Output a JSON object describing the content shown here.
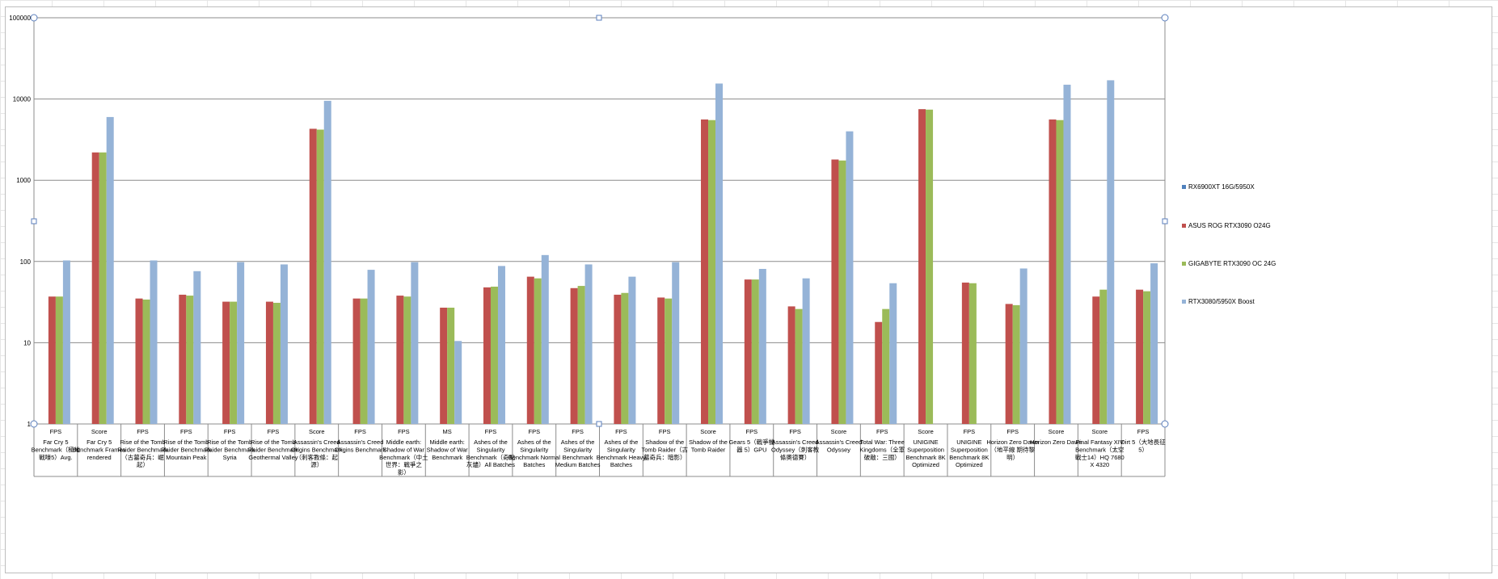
{
  "chart_data": {
    "type": "bar",
    "yscale": "log",
    "ylim": [
      1,
      100000
    ],
    "yticks": [
      1,
      10,
      100,
      1000,
      10000,
      100000
    ],
    "grid": true,
    "legend_position": "right",
    "categories": [
      {
        "metric": "FPS",
        "name": "Far Cry 5 Benchmark（極地戰嚎5）Avg."
      },
      {
        "metric": "Score",
        "name": "Far Cry 5 Benchmark Frames rendered"
      },
      {
        "metric": "FPS",
        "name": "Rise of the Tomb Raider Benchmark（古墓奇兵：崛起）"
      },
      {
        "metric": "FPS",
        "name": "Rise of the Tomb Raider Benchmark Mountain Peak"
      },
      {
        "metric": "FPS",
        "name": "Rise of the Tomb Raider Benchmark Syria"
      },
      {
        "metric": "FPS",
        "name": "Rise of the Tomb Raider Benchmark Geothermal Valley"
      },
      {
        "metric": "Score",
        "name": "Assassin's Creed Origins Benchmark（刺客教條：起源）"
      },
      {
        "metric": "FPS",
        "name": "Assassin's Creed Origins Benchmark"
      },
      {
        "metric": "FPS",
        "name": "Middle earth: Shadow of War Benchmark（中土世界：戰爭之影）"
      },
      {
        "metric": "MS",
        "name": "Middle earth: Shadow of War Benchmark"
      },
      {
        "metric": "FPS",
        "name": "Ashes of the Singularity Benchmark（奇點灰燼）All Batches"
      },
      {
        "metric": "FPS",
        "name": "Ashes of the Singularity Benchmark Normal Batches"
      },
      {
        "metric": "FPS",
        "name": "Ashes of the Singularity Benchmark Medium Batches"
      },
      {
        "metric": "FPS",
        "name": "Ashes of the Singularity Benchmark Heavy Batches"
      },
      {
        "metric": "FPS",
        "name": "Shadow of the Tomb Raider（古墓奇兵：暗影）"
      },
      {
        "metric": "Score",
        "name": "Shadow of the Tomb Raider"
      },
      {
        "metric": "FPS",
        "name": "Gears 5（戰爭機器 5）GPU"
      },
      {
        "metric": "FPS",
        "name": "Assassin's Creed Odyssey（刺客教條奧德賽）"
      },
      {
        "metric": "Score",
        "name": "Assassin's Creed Odyssey"
      },
      {
        "metric": "FPS",
        "name": "Total War: Three Kingdoms（全軍破敵：三國）"
      },
      {
        "metric": "Score",
        "name": "UNIGINE Superposition Benchmark 8K Optimized"
      },
      {
        "metric": "FPS",
        "name": "UNIGINE Superposition Benchmark 8K Optimized"
      },
      {
        "metric": "FPS",
        "name": "Horizon Zero Dawn（地平線 期待黎明）"
      },
      {
        "metric": "Score",
        "name": "Horizon Zero Dawn"
      },
      {
        "metric": "Score",
        "name": "Final Fantasy XIV Benchmark（太空戰士14）HQ 7680 X 4320"
      },
      {
        "metric": "FPS",
        "name": "Dirt 5（大地長征 5）"
      }
    ],
    "category_label_lines": [
      [
        "Far Cry 5",
        "Benchmark（極地",
        "戰嚎5）Avg."
      ],
      [
        "Far Cry 5",
        "Benchmark Frames",
        "rendered"
      ],
      [
        "Rise of the Tomb",
        "Raider Benchmark",
        "（古墓奇兵：崛",
        "起）"
      ],
      [
        "Rise of the Tomb",
        "Raider Benchmark",
        "Mountain Peak"
      ],
      [
        "Rise of the Tomb",
        "Raider Benchmark",
        "Syria"
      ],
      [
        "Rise of the Tomb",
        "Raider Benchmark",
        "Geothermal Valley"
      ],
      [
        "Assassin's Creed",
        "Origins Benchmark",
        "（刺客教條：起",
        "源）"
      ],
      [
        "Assassin's Creed",
        "Origins Benchmark"
      ],
      [
        "Middle earth:",
        "Shadow of War",
        "Benchmark（中土",
        "世界：戰爭之",
        "影）"
      ],
      [
        "Middle earth:",
        "Shadow of War",
        "Benchmark"
      ],
      [
        "Ashes of the",
        "Singularity",
        "Benchmark（奇點",
        "灰燼）All Batches"
      ],
      [
        "Ashes of the",
        "Singularity",
        "Benchmark Normal",
        "Batches"
      ],
      [
        "Ashes of the",
        "Singularity",
        "Benchmark",
        "Medium Batches"
      ],
      [
        "Ashes of the",
        "Singularity",
        "Benchmark Heavy",
        "Batches"
      ],
      [
        "Shadow of the",
        "Tomb Raider（古",
        "墓奇兵：暗影）"
      ],
      [
        "Shadow of the",
        "Tomb Raider"
      ],
      [
        "Gears 5（戰爭機",
        "器 5）GPU"
      ],
      [
        "Assassin's Creed",
        "Odyssey（刺客教",
        "條奧德賽）"
      ],
      [
        "Assassin's Creed",
        "Odyssey"
      ],
      [
        "Total War: Three",
        "Kingdoms（全軍",
        "破敵：三國）"
      ],
      [
        "UNIGINE",
        "Superposition",
        "Benchmark 8K",
        "Optimized"
      ],
      [
        "UNIGINE",
        "Superposition",
        "Benchmark 8K",
        "Optimized"
      ],
      [
        "Horizon Zero Dawn",
        "（地平線 期待黎",
        "明）"
      ],
      [
        "Horizon Zero Dawn"
      ],
      [
        "Final Fantasy XIV",
        "Benchmark（太空",
        "戰士14）HQ 7680",
        "X 4320"
      ],
      [
        "Dirt 5（大地長征",
        "5）"
      ]
    ],
    "series": [
      {
        "name": "RX6900XT 16G/5950X",
        "color": "#4f81bd",
        "values": [
          null,
          null,
          null,
          null,
          null,
          null,
          null,
          null,
          null,
          null,
          null,
          null,
          null,
          null,
          null,
          null,
          null,
          null,
          null,
          null,
          null,
          null,
          null,
          null,
          null,
          null
        ]
      },
      {
        "name": "ASUS ROG RTX3090 O24G",
        "color": "#c0504d",
        "values": [
          37,
          2200,
          35,
          39,
          32,
          32,
          4300,
          35,
          38,
          27,
          48,
          65,
          47,
          39,
          36,
          5600,
          60,
          28,
          1800,
          18,
          7500,
          55,
          30,
          5600,
          37,
          45
        ]
      },
      {
        "name": "GIGABYTE RTX3090 OC 24G",
        "color": "#9bbb59",
        "values": [
          37,
          2200,
          34,
          38,
          32,
          31,
          4200,
          35,
          37,
          27,
          49,
          62,
          50,
          41,
          35,
          5500,
          60,
          26,
          1750,
          26,
          7400,
          54,
          29,
          5500,
          45,
          43
        ]
      },
      {
        "name": "RTX3080/5950X Boost",
        "color": "#95b3d7",
        "values": [
          103,
          6000,
          103,
          76,
          98,
          92,
          9500,
          79,
          98,
          10.5,
          88,
          120,
          92,
          65,
          98,
          15500,
          81,
          62,
          4000,
          54,
          null,
          null,
          82,
          15000,
          17000,
          95
        ]
      }
    ]
  }
}
